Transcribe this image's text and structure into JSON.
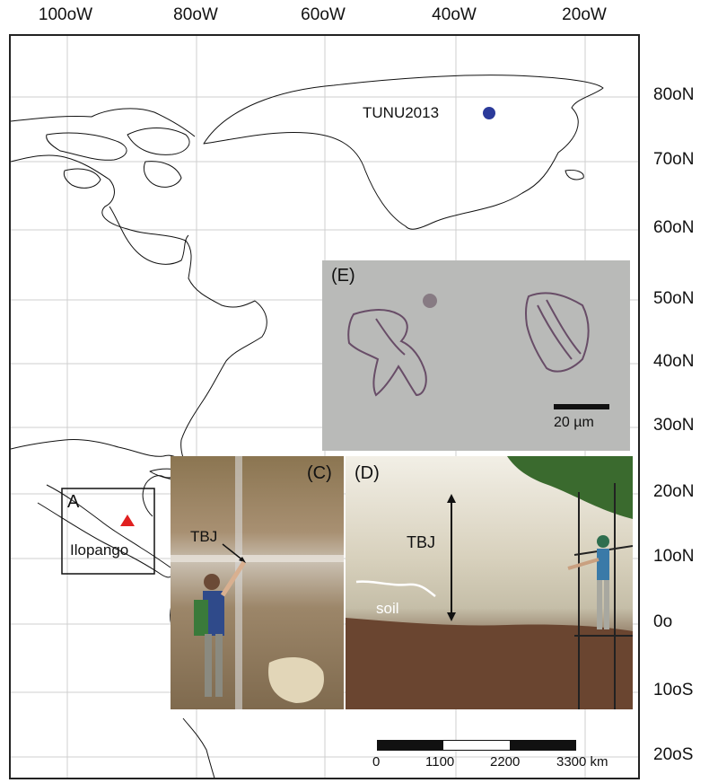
{
  "axes": {
    "longitude_labels": [
      "100oW",
      "80oW",
      "60oW",
      "40oW",
      "20oW"
    ],
    "latitude_labels": [
      "80oN",
      "70oN",
      "60oN",
      "50oN",
      "40oN",
      "30oN",
      "20oN",
      "10oN",
      "0o",
      "10oS",
      "20oS"
    ]
  },
  "sites": {
    "tunu": {
      "label": "TUNU2013",
      "marker_color": "#2b3a9a"
    },
    "ilopango": {
      "label": "Ilopango",
      "marker_color": "#e02020"
    }
  },
  "inset_box": {
    "label": "A"
  },
  "panels": {
    "e": {
      "label": "(E)",
      "scale_label": "20 µm"
    },
    "c": {
      "label": "(C)",
      "annotation": "TBJ"
    },
    "d": {
      "label": "(D)",
      "annotation": "TBJ",
      "soil_label": "soil"
    }
  },
  "scale_bar": {
    "ticks": [
      "0",
      "1100",
      "2200",
      "3300 km"
    ]
  },
  "colors": {
    "grid": "#cfcfcf",
    "coast": "#111111"
  }
}
